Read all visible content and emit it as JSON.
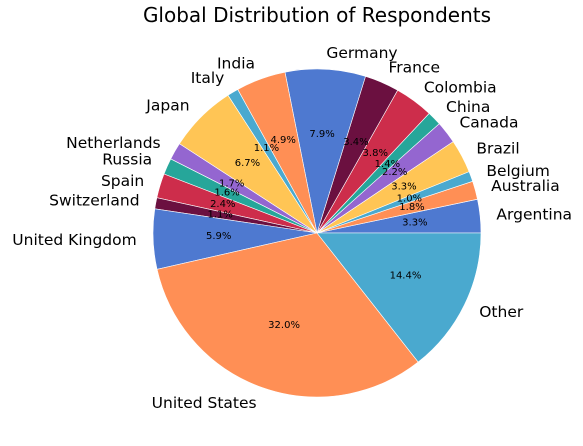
{
  "chart_data": {
    "type": "pie",
    "title": "Global Distribution of Respondents",
    "start_angle_deg": 0,
    "direction": "counterclockwise",
    "slices": [
      {
        "label": "Argentina",
        "value": 3.3,
        "pct_label": "3.3%",
        "color": "#4e79d0"
      },
      {
        "label": "Australia",
        "value": 1.8,
        "pct_label": "1.8%",
        "color": "#ff8f55"
      },
      {
        "label": "Belgium",
        "value": 1.0,
        "pct_label": "1.0%",
        "color": "#4aa9cf"
      },
      {
        "label": "Brazil",
        "value": 3.3,
        "pct_label": "3.3%",
        "color": "#ffc555"
      },
      {
        "label": "Canada",
        "value": 2.2,
        "pct_label": "2.2%",
        "color": "#9466d0"
      },
      {
        "label": "China",
        "value": 1.4,
        "pct_label": "1.4%",
        "color": "#26a69a"
      },
      {
        "label": "Colombia",
        "value": 3.8,
        "pct_label": "3.8%",
        "color": "#cd2d4b"
      },
      {
        "label": "France",
        "value": 3.4,
        "pct_label": "3.4%",
        "color": "#6b1040"
      },
      {
        "label": "Germany",
        "value": 7.9,
        "pct_label": "7.9%",
        "color": "#4e79d0"
      },
      {
        "label": "India",
        "value": 4.9,
        "pct_label": "4.9%",
        "color": "#ff8f55"
      },
      {
        "label": "Italy",
        "value": 1.1,
        "pct_label": "1.1%",
        "color": "#4aa9cf"
      },
      {
        "label": "Japan",
        "value": 6.7,
        "pct_label": "6.7%",
        "color": "#ffc555"
      },
      {
        "label": "Netherlands",
        "value": 1.7,
        "pct_label": "1.7%",
        "color": "#9466d0"
      },
      {
        "label": "Russia",
        "value": 1.6,
        "pct_label": "1.6%",
        "color": "#26a69a"
      },
      {
        "label": "Spain",
        "value": 2.4,
        "pct_label": "2.4%",
        "color": "#cd2d4b"
      },
      {
        "label": "Switzerland",
        "value": 1.1,
        "pct_label": "1.1%",
        "color": "#6b1040"
      },
      {
        "label": "United Kingdom",
        "value": 5.9,
        "pct_label": "5.9%",
        "color": "#4e79d0"
      },
      {
        "label": "United States",
        "value": 32.0,
        "pct_label": "32.0%",
        "color": "#ff8f55"
      },
      {
        "label": "Other",
        "value": 14.4,
        "pct_label": "14.4%",
        "color": "#4aa9cf"
      }
    ]
  }
}
